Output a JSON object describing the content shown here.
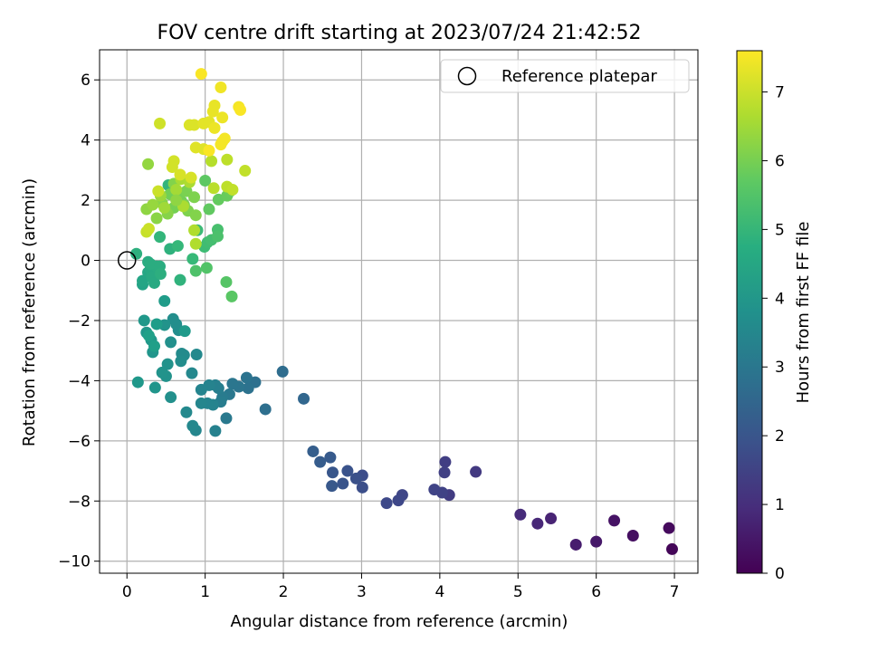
{
  "chart_data": {
    "type": "scatter",
    "title": "FOV centre drift starting at 2023/07/24 21:42:52",
    "xlabel": "Angular distance from reference (arcmin)",
    "ylabel": "Rotation from reference (arcmin)",
    "xlim": [
      -0.35,
      7.3
    ],
    "ylim": [
      -10.4,
      7.0
    ],
    "xticks": [
      0,
      1,
      2,
      3,
      4,
      5,
      6,
      7
    ],
    "yticks": [
      -10,
      -8,
      -6,
      -4,
      -2,
      0,
      2,
      4,
      6
    ],
    "grid": true,
    "legend": {
      "position": "top-right",
      "entries": [
        "Reference platepar"
      ]
    },
    "reference_point": {
      "x": 0,
      "y": 0
    },
    "colorbar": {
      "label": "Hours from first FF file",
      "colormap": "viridis",
      "range": [
        0,
        7.6
      ],
      "ticks": [
        0,
        1,
        2,
        3,
        4,
        5,
        6,
        7
      ]
    },
    "points": [
      {
        "x": 6.97,
        "y": -9.6,
        "c": 0.1
      },
      {
        "x": 6.93,
        "y": -8.9,
        "c": 0.2
      },
      {
        "x": 6.47,
        "y": -9.15,
        "c": 0.3
      },
      {
        "x": 6.23,
        "y": -8.65,
        "c": 0.4
      },
      {
        "x": 6.0,
        "y": -9.35,
        "c": 0.5
      },
      {
        "x": 5.74,
        "y": -9.45,
        "c": 0.6
      },
      {
        "x": 5.42,
        "y": -8.58,
        "c": 0.75
      },
      {
        "x": 5.25,
        "y": -8.75,
        "c": 0.85
      },
      {
        "x": 5.03,
        "y": -8.45,
        "c": 0.95
      },
      {
        "x": 4.46,
        "y": -7.03,
        "c": 1.3
      },
      {
        "x": 4.12,
        "y": -7.8,
        "c": 1.35
      },
      {
        "x": 4.07,
        "y": -6.7,
        "c": 1.4
      },
      {
        "x": 4.06,
        "y": -7.05,
        "c": 1.45
      },
      {
        "x": 4.03,
        "y": -7.72,
        "c": 1.5
      },
      {
        "x": 3.93,
        "y": -7.62,
        "c": 1.55
      },
      {
        "x": 3.52,
        "y": -7.8,
        "c": 1.6
      },
      {
        "x": 3.47,
        "y": -7.98,
        "c": 1.65
      },
      {
        "x": 3.32,
        "y": -8.07,
        "c": 1.7
      },
      {
        "x": 3.01,
        "y": -7.15,
        "c": 1.8
      },
      {
        "x": 3.01,
        "y": -7.55,
        "c": 1.85
      },
      {
        "x": 2.93,
        "y": -7.25,
        "c": 1.9
      },
      {
        "x": 2.82,
        "y": -7.0,
        "c": 1.95
      },
      {
        "x": 2.76,
        "y": -7.42,
        "c": 2.0
      },
      {
        "x": 2.63,
        "y": -7.05,
        "c": 2.05
      },
      {
        "x": 2.62,
        "y": -7.5,
        "c": 2.1
      },
      {
        "x": 2.6,
        "y": -6.55,
        "c": 2.15
      },
      {
        "x": 2.47,
        "y": -6.7,
        "c": 2.2
      },
      {
        "x": 2.38,
        "y": -6.35,
        "c": 2.25
      },
      {
        "x": 2.26,
        "y": -4.6,
        "c": 2.5
      },
      {
        "x": 1.99,
        "y": -3.7,
        "c": 2.7
      },
      {
        "x": 1.77,
        "y": -4.95,
        "c": 2.75
      },
      {
        "x": 1.64,
        "y": -4.05,
        "c": 2.8
      },
      {
        "x": 1.55,
        "y": -4.25,
        "c": 2.85
      },
      {
        "x": 1.53,
        "y": -3.9,
        "c": 2.9
      },
      {
        "x": 1.43,
        "y": -4.2,
        "c": 2.95
      },
      {
        "x": 1.35,
        "y": -4.1,
        "c": 3.0
      },
      {
        "x": 1.31,
        "y": -4.45,
        "c": 3.05
      },
      {
        "x": 1.27,
        "y": -5.25,
        "c": 3.1
      },
      {
        "x": 1.22,
        "y": -4.55,
        "c": 3.15
      },
      {
        "x": 1.2,
        "y": -4.7,
        "c": 3.2
      },
      {
        "x": 1.17,
        "y": -4.25,
        "c": 3.25
      },
      {
        "x": 1.13,
        "y": -4.15,
        "c": 3.3
      },
      {
        "x": 1.13,
        "y": -5.67,
        "c": 3.35
      },
      {
        "x": 1.1,
        "y": -4.8,
        "c": 3.4
      },
      {
        "x": 1.05,
        "y": -4.15,
        "c": 3.4
      },
      {
        "x": 1.03,
        "y": -4.75,
        "c": 3.45
      },
      {
        "x": 0.95,
        "y": -4.3,
        "c": 3.45
      },
      {
        "x": 0.95,
        "y": -4.75,
        "c": 3.5
      },
      {
        "x": 0.88,
        "y": -5.65,
        "c": 3.5
      },
      {
        "x": 0.84,
        "y": -5.5,
        "c": 3.55
      },
      {
        "x": 0.83,
        "y": -3.75,
        "c": 3.55
      },
      {
        "x": 0.89,
        "y": -3.13,
        "c": 3.6
      },
      {
        "x": 0.76,
        "y": -5.05,
        "c": 3.6
      },
      {
        "x": 0.73,
        "y": -3.15,
        "c": 3.65
      },
      {
        "x": 0.7,
        "y": -3.1,
        "c": 3.65
      },
      {
        "x": 0.69,
        "y": -3.35,
        "c": 3.7
      },
      {
        "x": 0.66,
        "y": -2.32,
        "c": 3.7
      },
      {
        "x": 0.63,
        "y": -2.12,
        "c": 3.75
      },
      {
        "x": 0.59,
        "y": -1.95,
        "c": 3.75
      },
      {
        "x": 0.56,
        "y": -4.55,
        "c": 3.8
      },
      {
        "x": 0.56,
        "y": -2.72,
        "c": 3.8
      },
      {
        "x": 0.52,
        "y": -3.45,
        "c": 3.85
      },
      {
        "x": 0.5,
        "y": -3.85,
        "c": 3.85
      },
      {
        "x": 0.48,
        "y": -2.15,
        "c": 3.9
      },
      {
        "x": 0.45,
        "y": -3.73,
        "c": 3.9
      },
      {
        "x": 0.36,
        "y": -4.23,
        "c": 3.95
      },
      {
        "x": 0.33,
        "y": -3.05,
        "c": 3.95
      },
      {
        "x": 0.31,
        "y": -2.65,
        "c": 4.0
      },
      {
        "x": 0.25,
        "y": -2.4,
        "c": 4.0
      },
      {
        "x": 0.22,
        "y": -2.0,
        "c": 4.05
      },
      {
        "x": 0.14,
        "y": -4.05,
        "c": 4.05
      },
      {
        "x": 0.74,
        "y": -2.35,
        "c": 4.1
      },
      {
        "x": 0.48,
        "y": -1.35,
        "c": 4.15
      },
      {
        "x": 0.38,
        "y": -2.12,
        "c": 4.2
      },
      {
        "x": 0.35,
        "y": -2.85,
        "c": 4.25
      },
      {
        "x": 0.28,
        "y": -2.5,
        "c": 4.3
      },
      {
        "x": 0.2,
        "y": -0.8,
        "c": 4.4
      },
      {
        "x": 0.2,
        "y": -0.68,
        "c": 4.45
      },
      {
        "x": 0.27,
        "y": -0.4,
        "c": 4.5
      },
      {
        "x": 0.3,
        "y": -0.3,
        "c": 4.55
      },
      {
        "x": 0.32,
        "y": -0.55,
        "c": 4.6
      },
      {
        "x": 0.35,
        "y": -0.75,
        "c": 4.6
      },
      {
        "x": 0.38,
        "y": -0.2,
        "c": 4.65
      },
      {
        "x": 0.27,
        "y": -0.05,
        "c": 4.65
      },
      {
        "x": 0.3,
        "y": -0.12,
        "c": 4.7
      },
      {
        "x": 0.42,
        "y": -0.2,
        "c": 4.7
      },
      {
        "x": 0.43,
        "y": -0.45,
        "c": 4.75
      },
      {
        "x": 0.12,
        "y": 0.22,
        "c": 4.8
      },
      {
        "x": 0.55,
        "y": 0.38,
        "c": 4.85
      },
      {
        "x": 0.68,
        "y": -0.65,
        "c": 4.9
      },
      {
        "x": 0.53,
        "y": 2.5,
        "c": 4.95
      },
      {
        "x": 0.42,
        "y": 0.78,
        "c": 5.0
      },
      {
        "x": 0.65,
        "y": 0.48,
        "c": 5.05
      },
      {
        "x": 0.84,
        "y": 0.05,
        "c": 5.1
      },
      {
        "x": 0.9,
        "y": 1.0,
        "c": 5.15
      },
      {
        "x": 0.99,
        "y": 0.45,
        "c": 5.2
      },
      {
        "x": 1.03,
        "y": 0.6,
        "c": 5.25
      },
      {
        "x": 1.08,
        "y": 0.68,
        "c": 5.3
      },
      {
        "x": 1.16,
        "y": 1.02,
        "c": 5.35
      },
      {
        "x": 1.16,
        "y": 0.8,
        "c": 5.4
      },
      {
        "x": 0.88,
        "y": -0.35,
        "c": 5.45
      },
      {
        "x": 1.02,
        "y": -0.25,
        "c": 5.5
      },
      {
        "x": 1.27,
        "y": -0.72,
        "c": 5.55
      },
      {
        "x": 1.34,
        "y": -1.2,
        "c": 5.6
      },
      {
        "x": 1.0,
        "y": 2.65,
        "c": 5.65
      },
      {
        "x": 1.05,
        "y": 1.7,
        "c": 5.7
      },
      {
        "x": 1.17,
        "y": 2.02,
        "c": 5.75
      },
      {
        "x": 1.28,
        "y": 2.15,
        "c": 5.8
      },
      {
        "x": 1.32,
        "y": 2.3,
        "c": 5.85
      },
      {
        "x": 0.7,
        "y": 1.95,
        "c": 5.9
      },
      {
        "x": 0.55,
        "y": 2.2,
        "c": 5.95
      },
      {
        "x": 0.6,
        "y": 1.75,
        "c": 6.0
      },
      {
        "x": 0.66,
        "y": 2.05,
        "c": 6.0
      },
      {
        "x": 0.73,
        "y": 1.85,
        "c": 6.05
      },
      {
        "x": 0.76,
        "y": 2.3,
        "c": 6.05
      },
      {
        "x": 0.78,
        "y": 1.65,
        "c": 6.1
      },
      {
        "x": 0.86,
        "y": 2.1,
        "c": 6.1
      },
      {
        "x": 0.88,
        "y": 1.5,
        "c": 6.15
      },
      {
        "x": 0.6,
        "y": 2.55,
        "c": 6.15
      },
      {
        "x": 0.45,
        "y": 1.9,
        "c": 6.2
      },
      {
        "x": 0.52,
        "y": 1.55,
        "c": 6.2
      },
      {
        "x": 0.38,
        "y": 1.4,
        "c": 6.25
      },
      {
        "x": 0.25,
        "y": 1.7,
        "c": 6.3
      },
      {
        "x": 0.27,
        "y": 3.2,
        "c": 6.35
      },
      {
        "x": 0.33,
        "y": 1.85,
        "c": 6.4
      },
      {
        "x": 0.43,
        "y": 2.15,
        "c": 6.45
      },
      {
        "x": 0.48,
        "y": 1.75,
        "c": 6.5
      },
      {
        "x": 0.63,
        "y": 2.35,
        "c": 6.55
      },
      {
        "x": 0.69,
        "y": 2.7,
        "c": 6.6
      },
      {
        "x": 0.72,
        "y": 1.8,
        "c": 6.65
      },
      {
        "x": 0.8,
        "y": 2.6,
        "c": 6.65
      },
      {
        "x": 0.86,
        "y": 1.0,
        "c": 6.7
      },
      {
        "x": 0.88,
        "y": 0.55,
        "c": 6.7
      },
      {
        "x": 1.08,
        "y": 3.3,
        "c": 6.75
      },
      {
        "x": 1.11,
        "y": 2.4,
        "c": 6.8
      },
      {
        "x": 1.28,
        "y": 3.35,
        "c": 6.85
      },
      {
        "x": 1.28,
        "y": 2.45,
        "c": 6.85
      },
      {
        "x": 1.51,
        "y": 2.98,
        "c": 6.9
      },
      {
        "x": 1.35,
        "y": 2.35,
        "c": 6.9
      },
      {
        "x": 0.25,
        "y": 0.95,
        "c": 6.95
      },
      {
        "x": 0.28,
        "y": 1.05,
        "c": 7.0
      },
      {
        "x": 0.4,
        "y": 2.3,
        "c": 7.0
      },
      {
        "x": 0.42,
        "y": 4.55,
        "c": 7.05
      },
      {
        "x": 0.6,
        "y": 3.3,
        "c": 7.1
      },
      {
        "x": 0.58,
        "y": 3.1,
        "c": 7.1
      },
      {
        "x": 0.68,
        "y": 2.85,
        "c": 7.15
      },
      {
        "x": 0.82,
        "y": 2.75,
        "c": 7.15
      },
      {
        "x": 0.8,
        "y": 4.5,
        "c": 7.2
      },
      {
        "x": 0.86,
        "y": 4.5,
        "c": 7.2
      },
      {
        "x": 0.88,
        "y": 3.75,
        "c": 7.25
      },
      {
        "x": 0.98,
        "y": 3.7,
        "c": 7.25
      },
      {
        "x": 0.98,
        "y": 4.55,
        "c": 7.3
      },
      {
        "x": 1.05,
        "y": 4.6,
        "c": 7.3
      },
      {
        "x": 1.1,
        "y": 4.95,
        "c": 7.35
      },
      {
        "x": 1.12,
        "y": 5.15,
        "c": 7.35
      },
      {
        "x": 1.12,
        "y": 4.4,
        "c": 7.4
      },
      {
        "x": 1.22,
        "y": 4.75,
        "c": 7.4
      },
      {
        "x": 1.2,
        "y": 5.75,
        "c": 7.45
      },
      {
        "x": 1.22,
        "y": 3.95,
        "c": 7.45
      },
      {
        "x": 1.25,
        "y": 4.05,
        "c": 7.5
      },
      {
        "x": 1.2,
        "y": 3.85,
        "c": 7.5
      },
      {
        "x": 1.43,
        "y": 5.1,
        "c": 7.5
      },
      {
        "x": 1.45,
        "y": 5.0,
        "c": 7.55
      },
      {
        "x": 0.95,
        "y": 6.2,
        "c": 7.55
      },
      {
        "x": 1.05,
        "y": 3.65,
        "c": 7.55
      },
      {
        "x": 0.63,
        "y": 2.0,
        "c": 6.3
      }
    ]
  }
}
